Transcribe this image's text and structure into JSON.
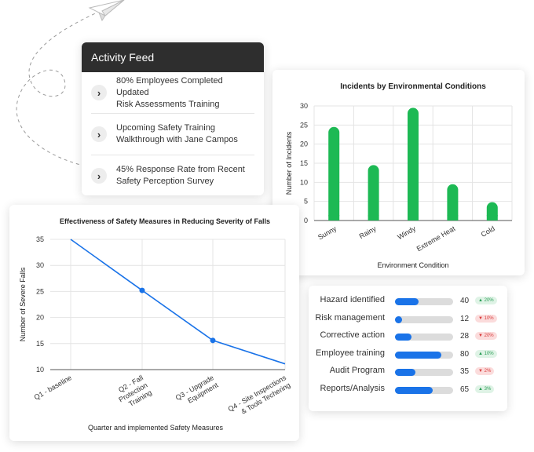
{
  "activity_feed": {
    "title": "Activity Feed",
    "items": [
      {
        "line1": "80% Employees Completed Updated",
        "line2": "Risk Assessments Training",
        "icon": "chevron-right-icon"
      },
      {
        "line1": "Upcoming Safety Training",
        "line2": "Walkthrough with Jane Campos",
        "icon": "chevron-right-icon"
      },
      {
        "line1": "45% Response Rate from Recent",
        "line2": "Safety Perception Survey",
        "icon": "chevron-right-icon"
      }
    ]
  },
  "decoration": {
    "icon": "paper-plane-icon"
  },
  "chart_data": [
    {
      "type": "bar",
      "title": "Incidents by Environmental Conditions",
      "xlabel": "Environment Condition",
      "ylabel": "Number of Incidents",
      "categories": [
        "Sunny",
        "Rainy",
        "Windy",
        "Extreme Heat",
        "Cold"
      ],
      "values": [
        24.5,
        14.5,
        29.5,
        9.5,
        4.8
      ],
      "ylim": [
        0,
        30
      ],
      "yticks": [
        0,
        5,
        10,
        15,
        20,
        25,
        30
      ],
      "grid": true,
      "color": "#1db954"
    },
    {
      "type": "line",
      "title": "Effectiveness of Safety Measures in Reducing Severity of Falls",
      "xlabel": "Quarter and implemented Safety Measures",
      "ylabel": "Number of Severe Falls",
      "categories": [
        "Q1 - baseline",
        "Q2 - Fall Protection Training",
        "Q3 - Upgrade Equipment",
        "Q4 - Site Inspections & Tools Techering"
      ],
      "tick_lines": [
        [
          "Q1 - baseline"
        ],
        [
          "Q2 - Fall",
          "Protection",
          "Training"
        ],
        [
          "Q3 - Upgrade",
          "Equipment"
        ],
        [
          "Q4 - Site Inspections",
          "& Tools Techering"
        ]
      ],
      "values": [
        35,
        25.2,
        15.6,
        11.1
      ],
      "ylim": [
        10,
        35
      ],
      "yticks": [
        10,
        15,
        20,
        25,
        30,
        35
      ],
      "grid": true,
      "color": "#1a73e8"
    }
  ],
  "metrics": {
    "accent": "#1a73e8",
    "items": [
      {
        "label": "Hazard identified",
        "value": "40",
        "progress": 0.4,
        "badge": "▲ 20%",
        "trend": "up"
      },
      {
        "label": "Risk management",
        "value": "12",
        "progress": 0.12,
        "badge": "▼ 10%",
        "trend": "down"
      },
      {
        "label": "Corrective action",
        "value": "28",
        "progress": 0.28,
        "badge": "▼ 20%",
        "trend": "down"
      },
      {
        "label": "Employee training",
        "value": "80",
        "progress": 0.8,
        "badge": "▲ 10%",
        "trend": "up"
      },
      {
        "label": "Audit Program",
        "value": "35",
        "progress": 0.35,
        "badge": "▼ 2%",
        "trend": "down"
      },
      {
        "label": "Reports/Analysis",
        "value": "65",
        "progress": 0.65,
        "badge": "▲ 3%",
        "trend": "up"
      }
    ]
  }
}
